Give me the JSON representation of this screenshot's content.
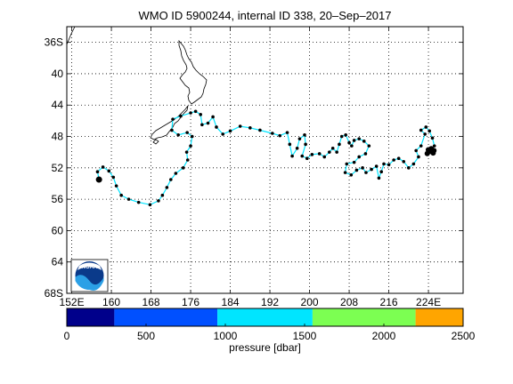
{
  "title": "WMO ID 5900244, internal ID 338, 20–Sep–2017",
  "map": {
    "lon_range": [
      151,
      231
    ],
    "lat_range": [
      -68,
      -34
    ],
    "lon_ticks": [
      152,
      160,
      168,
      176,
      184,
      192,
      200,
      208,
      216,
      224
    ],
    "lon_tick_labels": [
      "152E",
      "160",
      "168",
      "176",
      "184",
      "192",
      "200",
      "208",
      "216",
      "224E"
    ],
    "lat_ticks": [
      -36,
      -40,
      -44,
      -48,
      -52,
      -56,
      -60,
      -64,
      -68
    ],
    "lat_tick_labels": [
      "36S",
      "40",
      "44",
      "48",
      "52",
      "56",
      "60",
      "64",
      "68S"
    ],
    "grid": "on",
    "logo_text": "NOAA",
    "track_color": "#00e5ff",
    "point_color": "#000000"
  },
  "chart_data": {
    "type": "scatter",
    "title": "WMO ID 5900244, internal ID 338, 20–Sep–2017",
    "xlabel": "",
    "ylabel": "",
    "x_units": "longitude (degrees East)",
    "y_units": "latitude (negative = South)",
    "xlim": [
      151,
      231
    ],
    "ylim": [
      -68,
      -34
    ],
    "grid": "on",
    "series": [
      {
        "track": [
          [
            157.5,
            -53.5
          ],
          [
            157.2,
            -52.5
          ],
          [
            158.3,
            -51.9
          ],
          [
            159.5,
            -52.4
          ],
          [
            160.4,
            -53.2
          ],
          [
            161.0,
            -54.3
          ],
          [
            162.0,
            -55.5
          ],
          [
            163.5,
            -56.0
          ],
          [
            165.5,
            -56.4
          ],
          [
            167.8,
            -56.7
          ],
          [
            169.5,
            -56.2
          ],
          [
            170.3,
            -55.5
          ],
          [
            171.2,
            -54.5
          ],
          [
            172.0,
            -53.5
          ],
          [
            173.0,
            -52.7
          ],
          [
            174.5,
            -52.0
          ],
          [
            175.4,
            -51.0
          ],
          [
            175.2,
            -50.0
          ],
          [
            176.0,
            -49.2
          ],
          [
            176.3,
            -48.0
          ],
          [
            175.3,
            -47.5
          ],
          [
            173.5,
            -47.8
          ],
          [
            172.2,
            -47.2
          ],
          [
            172.4,
            -45.8
          ],
          [
            174.0,
            -45.4
          ],
          [
            176.0,
            -45.0
          ],
          [
            177.0,
            -44.8
          ],
          [
            178.0,
            -45.2
          ],
          [
            178.3,
            -46.5
          ],
          [
            179.5,
            -46.3
          ],
          [
            180.5,
            -45.5
          ],
          [
            181.2,
            -46.8
          ],
          [
            182.5,
            -47.7
          ],
          [
            184.0,
            -47.3
          ],
          [
            186.0,
            -46.7
          ],
          [
            188.0,
            -46.9
          ],
          [
            190.0,
            -47.2
          ],
          [
            192.5,
            -47.6
          ],
          [
            194.0,
            -47.9
          ],
          [
            195.5,
            -47.5
          ],
          [
            196.0,
            -49.0
          ],
          [
            196.5,
            -50.5
          ],
          [
            197.5,
            -49.5
          ],
          [
            198.0,
            -48.3
          ],
          [
            199.0,
            -47.8
          ],
          [
            199.2,
            -49.0
          ],
          [
            198.5,
            -50.5
          ],
          [
            199.5,
            -50.8
          ],
          [
            200.5,
            -50.3
          ],
          [
            202.0,
            -50.2
          ],
          [
            203.0,
            -50.6
          ],
          [
            204.0,
            -50.0
          ],
          [
            204.7,
            -49.5
          ],
          [
            205.5,
            -50.0
          ],
          [
            206.0,
            -49.0
          ],
          [
            206.5,
            -48.0
          ],
          [
            207.3,
            -47.8
          ],
          [
            208.0,
            -48.8
          ],
          [
            208.5,
            -49.2
          ],
          [
            209.0,
            -48.5
          ],
          [
            210.0,
            -48.3
          ],
          [
            211.0,
            -48.6
          ],
          [
            212.0,
            -49.2
          ],
          [
            211.3,
            -50.2
          ],
          [
            210.0,
            -50.6
          ],
          [
            209.0,
            -51.3
          ],
          [
            207.5,
            -51.5
          ],
          [
            207.2,
            -52.6
          ],
          [
            208.4,
            -52.9
          ],
          [
            209.5,
            -52.3
          ],
          [
            210.7,
            -52.0
          ],
          [
            211.4,
            -52.6
          ],
          [
            212.5,
            -52.2
          ],
          [
            213.5,
            -51.8
          ],
          [
            214.0,
            -53.3
          ],
          [
            214.5,
            -52.5
          ],
          [
            215.0,
            -51.5
          ],
          [
            216.0,
            -51.6
          ],
          [
            217.0,
            -51.0
          ],
          [
            218.0,
            -50.8
          ],
          [
            219.0,
            -51.2
          ],
          [
            220.0,
            -52.0
          ],
          [
            221.0,
            -51.5
          ],
          [
            222.0,
            -50.6
          ],
          [
            221.5,
            -49.8
          ],
          [
            222.5,
            -49.2
          ],
          [
            223.3,
            -47.7
          ],
          [
            222.5,
            -47.2
          ],
          [
            223.5,
            -46.8
          ],
          [
            224.2,
            -47.3
          ],
          [
            224.8,
            -48.2
          ],
          [
            225.2,
            -49.2
          ],
          [
            224.3,
            -49.9
          ]
        ]
      }
    ]
  },
  "colorbar": {
    "ticks": [
      0,
      500,
      1000,
      1500,
      2000,
      2500
    ],
    "tick_labels": [
      "0",
      "500",
      "1000",
      "1500",
      "2000",
      "2500"
    ],
    "range": [
      0,
      2500
    ],
    "xlabel": "pressure [dbar]",
    "bins": [
      {
        "from": 0,
        "to": 300,
        "color": "#00008b"
      },
      {
        "from": 300,
        "to": 950,
        "color": "#0050ff"
      },
      {
        "from": 950,
        "to": 1550,
        "color": "#00e5ff"
      },
      {
        "from": 1550,
        "to": 2200,
        "color": "#7cff52"
      },
      {
        "from": 2200,
        "to": 2500,
        "color": "#ffa500"
      }
    ]
  }
}
